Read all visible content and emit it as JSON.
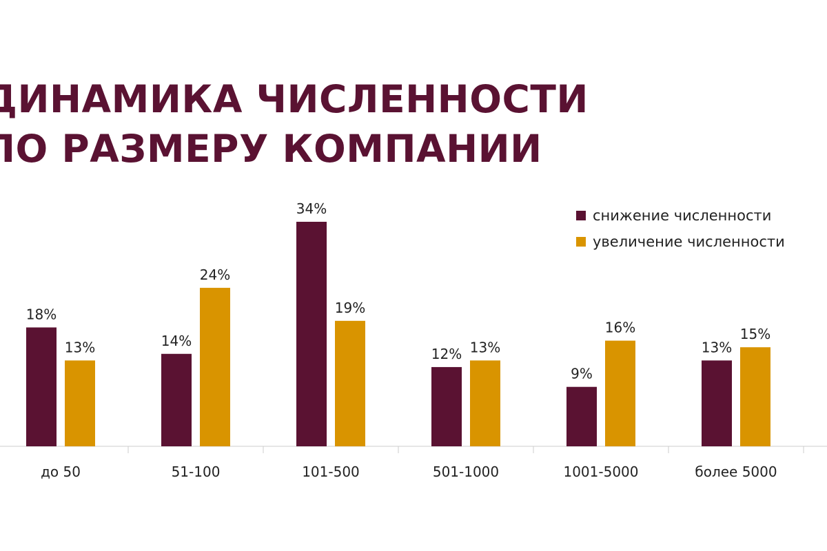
{
  "title": [
    "ДИНАМИКА ЧИСЛЕННОСТИ",
    "ПО РАЗМЕРУ КОМПАНИИ"
  ],
  "colors": {
    "decrease": "#5a1232",
    "increase": "#d99400",
    "axis": "#cccccc"
  },
  "chart_data": {
    "type": "bar",
    "title": "ДИНАМИКА ЧИСЛЕННОСТИ ПО РАЗМЕРУ КОМПАНИИ",
    "categories": [
      "до 50",
      "51-100",
      "101-500",
      "501-1000",
      "1001-5000",
      "более 5000"
    ],
    "series": [
      {
        "name": "снижение численности",
        "values": [
          18,
          14,
          34,
          12,
          9,
          13
        ],
        "labels": [
          "18%",
          "14%",
          "34%",
          "12%",
          "9%",
          "13%"
        ]
      },
      {
        "name": "увеличение численности",
        "values": [
          13,
          24,
          19,
          13,
          16,
          15
        ],
        "labels": [
          "13%",
          "24%",
          "19%",
          "13%",
          "16%",
          "15%"
        ]
      }
    ],
    "unit": "%",
    "ylim": [
      0,
      34
    ],
    "grid": false,
    "legend": "top-right"
  }
}
